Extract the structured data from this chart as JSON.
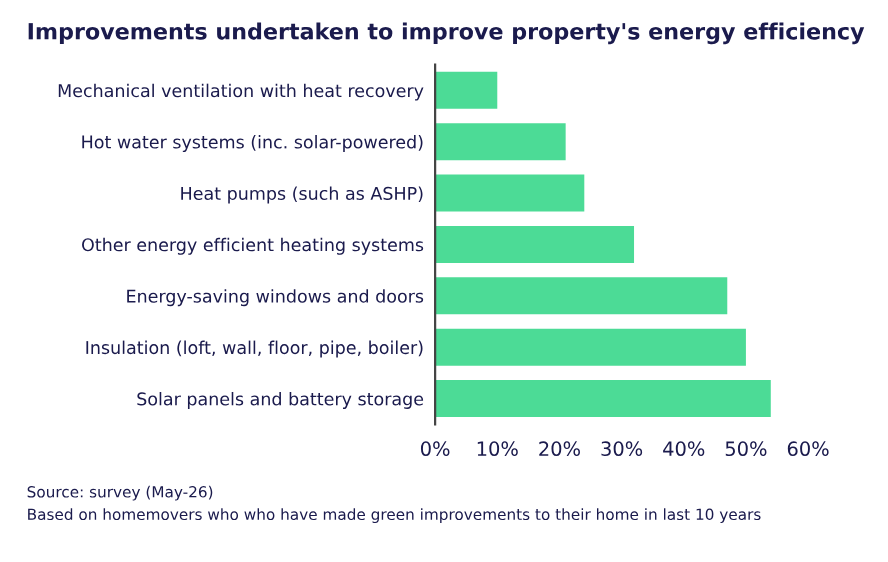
{
  "chart_data": {
    "type": "bar",
    "orientation": "horizontal",
    "title": "Improvements undertaken to improve property's energy efficiency",
    "categories": [
      "Mechanical ventilation with heat recovery",
      "Hot water systems (inc. solar-powered)",
      "Heat pumps (such as ASHP)",
      "Other energy efficient heating systems",
      "Energy-saving windows and doors",
      "Insulation (loft, wall, floor, pipe, boiler)",
      "Solar panels and battery storage"
    ],
    "values": [
      10,
      21,
      24,
      32,
      47,
      50,
      54
    ],
    "color": "#4cdb96",
    "xlim": [
      0,
      60
    ],
    "xticks": [
      {
        "value": 0,
        "label": "0%"
      },
      {
        "value": 10,
        "label": "10%"
      },
      {
        "value": 20,
        "label": "20%"
      },
      {
        "value": 30,
        "label": "30%"
      },
      {
        "value": 40,
        "label": "40%"
      },
      {
        "value": 50,
        "label": "50%"
      },
      {
        "value": 60,
        "label": "60%"
      }
    ],
    "grid": false,
    "legend": false,
    "annotations": [
      "Source: survey (May-26)",
      "Based on homemovers who who have made green improvements to their home in last 10 years"
    ]
  }
}
